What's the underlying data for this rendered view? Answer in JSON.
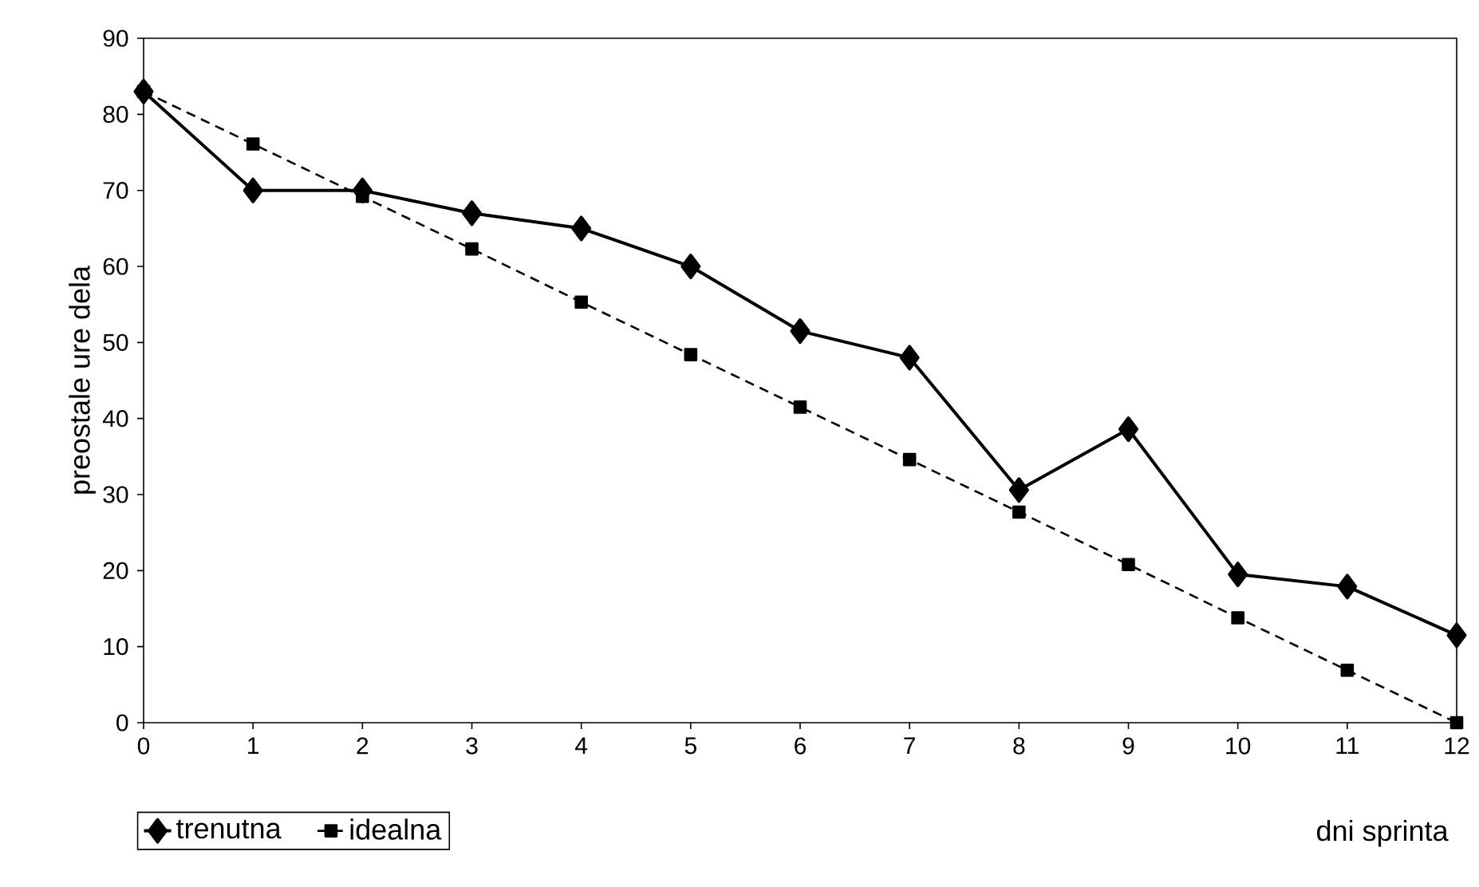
{
  "chart_data": {
    "type": "line",
    "xlabel": "dni sprinta",
    "ylabel": "preostale ure dela",
    "x": [
      0,
      1,
      2,
      3,
      4,
      5,
      6,
      7,
      8,
      9,
      10,
      11,
      12
    ],
    "series": [
      {
        "name": "trenutna",
        "color": "#000000",
        "marker": "diamond",
        "line_style": "solid",
        "values": [
          83,
          70,
          70,
          67,
          65,
          60,
          51.5,
          48,
          30.6,
          38.6,
          19.5,
          17.9,
          11.5
        ]
      },
      {
        "name": "idealna",
        "color": "#000000",
        "marker": "square",
        "line_style": "dashed",
        "values": [
          83,
          76.1,
          69.2,
          62.3,
          55.3,
          48.4,
          41.5,
          34.6,
          27.7,
          20.8,
          13.8,
          6.9,
          0
        ]
      }
    ],
    "xlim": [
      0,
      12
    ],
    "xticks": [
      0,
      1,
      2,
      3,
      4,
      5,
      6,
      7,
      8,
      9,
      10,
      11,
      12
    ],
    "ylim": [
      0,
      90
    ],
    "yticks": [
      0,
      10,
      20,
      30,
      40,
      50,
      60,
      70,
      80,
      90
    ],
    "grid": false,
    "legend": "bottom left"
  }
}
